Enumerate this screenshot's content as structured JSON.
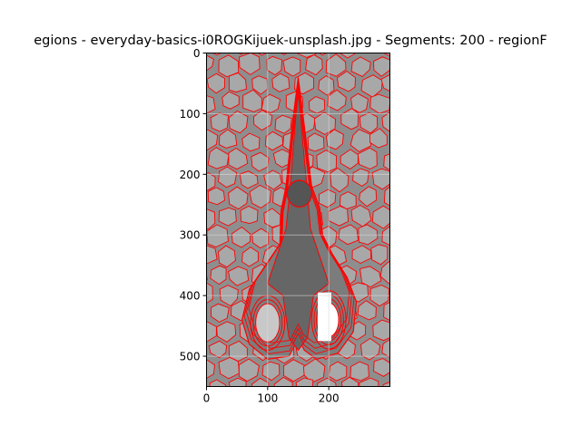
{
  "figure": {
    "title": "egions - everyday-basics-i0ROGKijuek-unsplash.jpg - Segments: 200 - regionF"
  },
  "chart_data": {
    "type": "image",
    "title": "egions - everyday-basics-i0ROGKijuek-unsplash.jpg - Segments: 200 - regionF",
    "xlabel": "",
    "ylabel": "",
    "xlim": [
      0,
      300
    ],
    "ylim": [
      550,
      0
    ],
    "x_ticks": [
      0,
      100,
      200
    ],
    "y_ticks": [
      0,
      100,
      200,
      300,
      400,
      500
    ],
    "grid": true,
    "y_inverted": true,
    "image_width": 300,
    "image_height": 550,
    "colors": {
      "background_region": "#8e8e8e",
      "light_region": "#a8a8a8",
      "mid_region": "#7c7c7c",
      "dark_region": "#666666",
      "highlight_region": "#ffffff",
      "boundary": "#ff0000",
      "grid": "#d9d9d9",
      "frame": "#000000",
      "text": "#000000"
    }
  }
}
